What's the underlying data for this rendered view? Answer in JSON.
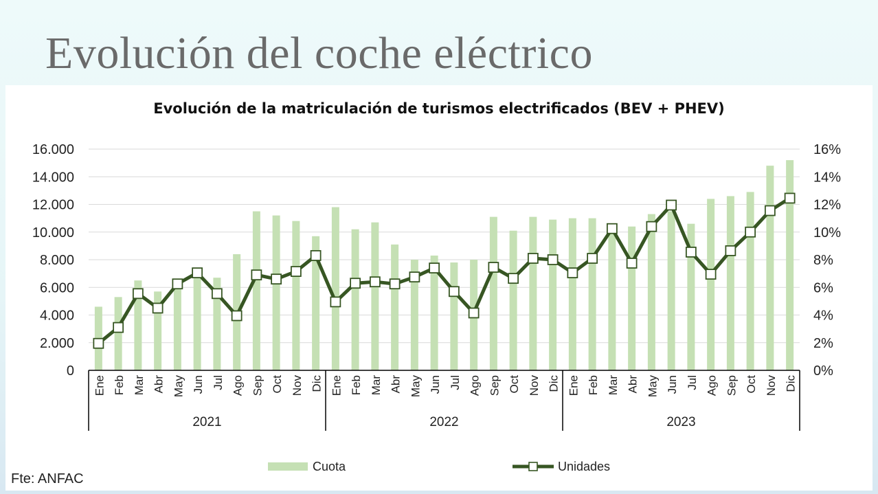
{
  "slide": {
    "title": "Evolución del coche eléctrico",
    "source": "Fte: ANFAC"
  },
  "colors": {
    "bars": "#c5e0b4",
    "line": "#375623",
    "marker_fill": "#ffffff",
    "grid": "#d9d9d9",
    "axis": "#000000"
  },
  "chart_data": {
    "type": "bar",
    "title": "Evolución de la matriculación de turismos electrificados (BEV + PHEV)",
    "categories": [
      "Ene",
      "Feb",
      "Mar",
      "Abr",
      "May",
      "Jun",
      "Jul",
      "Ago",
      "Sep",
      "Oct",
      "Nov",
      "Dic",
      "Ene",
      "Feb",
      "Mar",
      "Abr",
      "May",
      "Jun",
      "Jul",
      "Ago",
      "Sep",
      "Oct",
      "Nov",
      "Dic",
      "Ene",
      "Feb",
      "Mar",
      "Abr",
      "May",
      "Jun",
      "Jul",
      "Ago",
      "Sep",
      "Oct",
      "Nov",
      "Dic"
    ],
    "groups": [
      {
        "label": "2021",
        "start": 0,
        "count": 12
      },
      {
        "label": "2022",
        "start": 12,
        "count": 12
      },
      {
        "label": "2023",
        "start": 24,
        "count": 12
      }
    ],
    "series": [
      {
        "name": "Cuota",
        "type": "bar",
        "axis": "right",
        "values": [
          4.6,
          5.3,
          6.5,
          5.7,
          6.0,
          7.0,
          6.7,
          8.4,
          11.5,
          11.2,
          10.8,
          9.7,
          11.8,
          10.2,
          10.7,
          9.1,
          8.0,
          8.3,
          7.8,
          8.0,
          11.1,
          10.1,
          11.1,
          10.9,
          11.0,
          11.0,
          10.0,
          10.4,
          11.3,
          11.5,
          10.6,
          12.4,
          12.6,
          12.9,
          14.8,
          15.2
        ]
      },
      {
        "name": "Unidades",
        "type": "line",
        "axis": "left",
        "values": [
          1950,
          3100,
          5550,
          4500,
          6250,
          7050,
          5550,
          3950,
          6900,
          6600,
          7150,
          8300,
          4950,
          6300,
          6400,
          6250,
          6750,
          7400,
          5700,
          4150,
          7450,
          6650,
          8100,
          8000,
          7050,
          8100,
          10250,
          7750,
          10400,
          11950,
          8550,
          6950,
          8650,
          10000,
          11550,
          12450
        ]
      }
    ],
    "y_left": {
      "min": 0,
      "max": 16000,
      "ticks": [
        "0",
        "2.000",
        "4.000",
        "6.000",
        "8.000",
        "10.000",
        "12.000",
        "14.000",
        "16.000"
      ]
    },
    "y_right": {
      "min": 0,
      "max": 16,
      "ticks": [
        "0%",
        "2%",
        "4%",
        "6%",
        "8%",
        "10%",
        "12%",
        "14%",
        "16%"
      ]
    },
    "grid": true,
    "legend_position": "bottom"
  }
}
